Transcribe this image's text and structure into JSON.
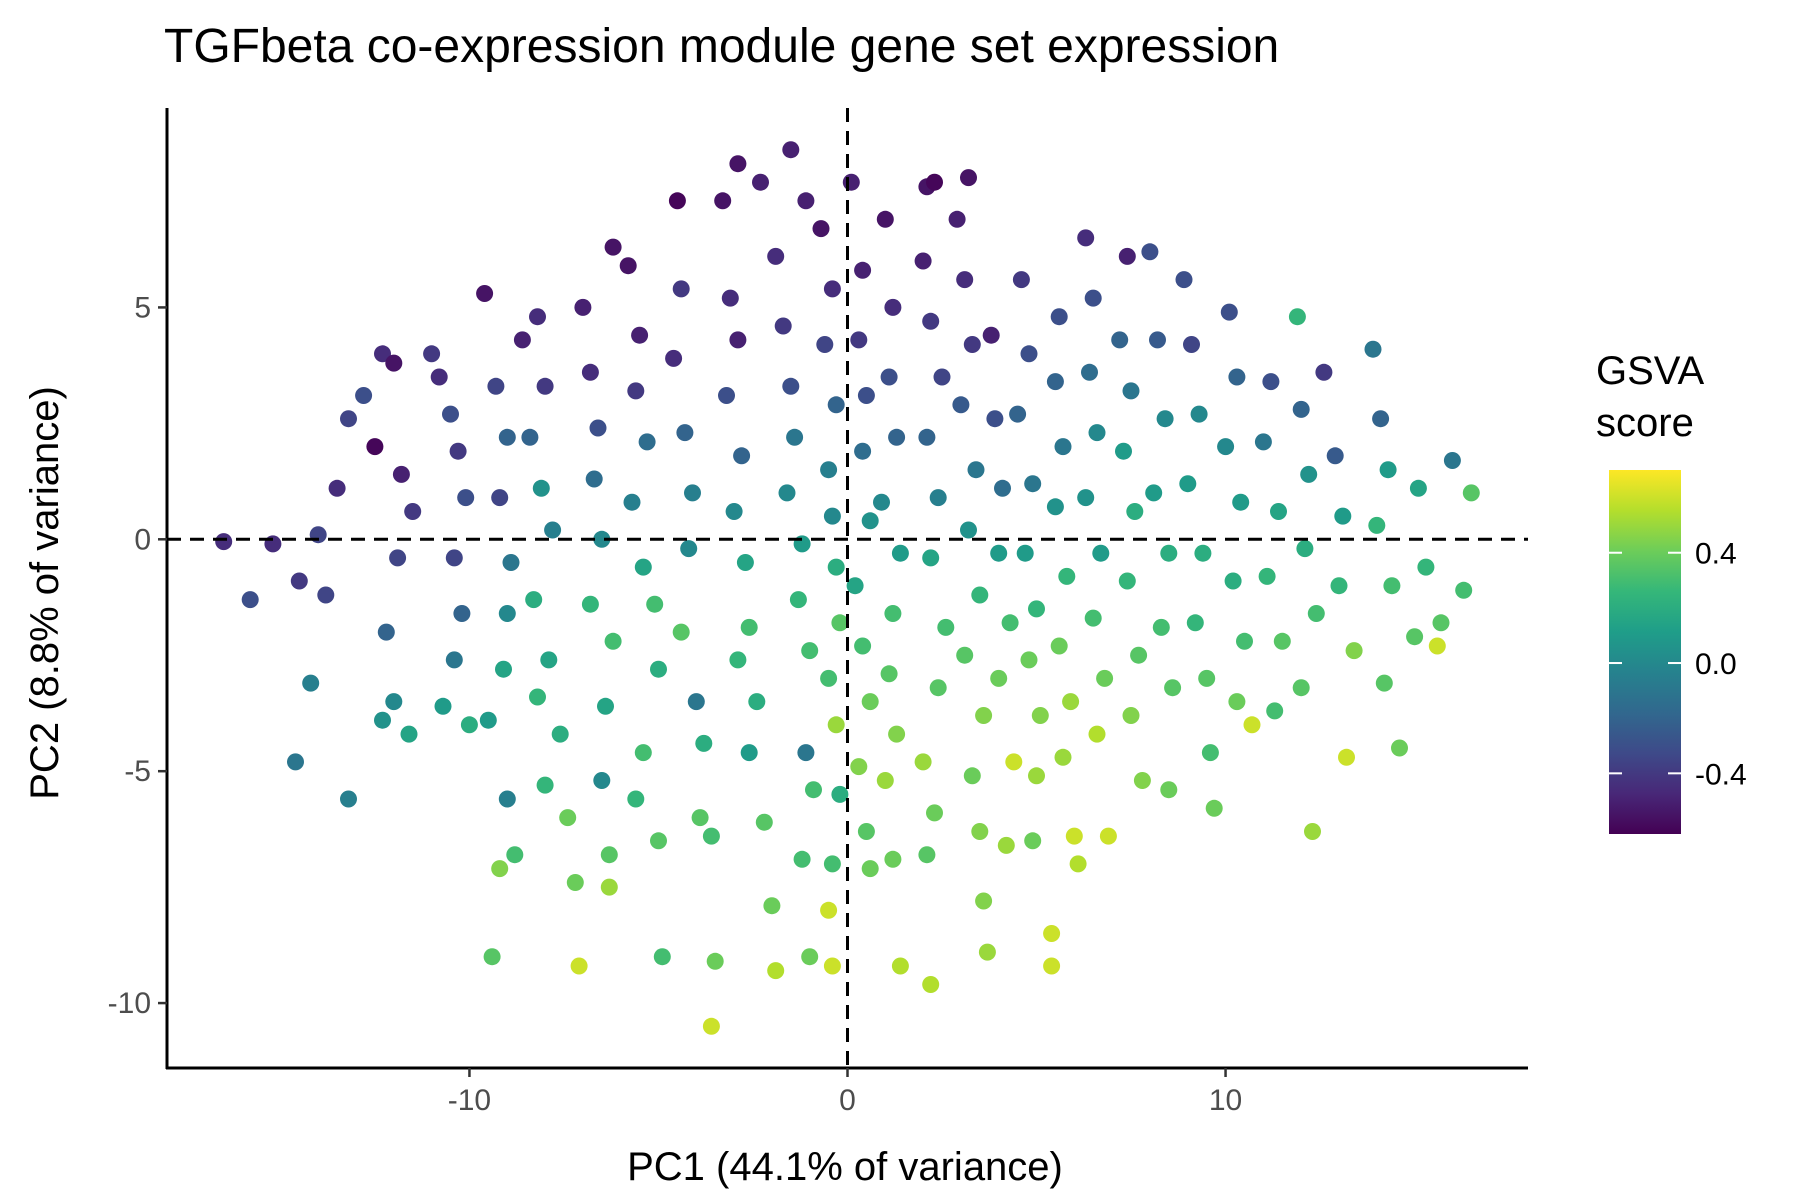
{
  "chart_data": {
    "type": "scatter",
    "title": "TGFbeta co-expression module gene set expression",
    "xlabel": "PC1 (44.1% of variance)",
    "ylabel": "PC2 (8.8% of variance)",
    "xlim": [
      -18,
      18
    ],
    "ylim": [
      -11.4,
      9.3
    ],
    "x_ticks": [
      -10,
      0,
      10
    ],
    "x_tick_labels": [
      "-10",
      "0",
      "10"
    ],
    "y_ticks": [
      -10,
      -5,
      0,
      5
    ],
    "y_tick_labels": [
      "-10",
      "-5",
      "0",
      "5"
    ],
    "reference_lines": {
      "x": 0,
      "y": 0,
      "style": "dashed"
    },
    "grid": false,
    "color_scale": {
      "name": "viridis",
      "title_lines": [
        "GSVA",
        "score"
      ],
      "domain": [
        -0.62,
        0.7
      ],
      "breaks": [
        -0.4,
        0.0,
        0.4
      ],
      "break_labels": [
        "-0.4",
        "0.0",
        "0.4"
      ],
      "stops": [
        "#440154",
        "#482878",
        "#3E4A89",
        "#31688E",
        "#26828E",
        "#1F9E89",
        "#35B779",
        "#6DCD59",
        "#B4DE2C",
        "#FDE725"
      ]
    },
    "legend_position": "right",
    "points": [
      [
        -16.5,
        -0.05,
        -0.45
      ],
      [
        -15.2,
        -0.1,
        -0.45
      ],
      [
        -15.8,
        -1.3,
        -0.3
      ],
      [
        -14.0,
        0.1,
        -0.35
      ],
      [
        -14.5,
        -0.9,
        -0.4
      ],
      [
        -13.8,
        -1.2,
        -0.35
      ],
      [
        -14.2,
        -3.1,
        -0.05
      ],
      [
        -14.6,
        -4.8,
        -0.1
      ],
      [
        -13.2,
        -5.6,
        -0.05
      ],
      [
        -13.5,
        1.1,
        -0.45
      ],
      [
        -13.2,
        2.6,
        -0.35
      ],
      [
        -12.8,
        3.1,
        -0.3
      ],
      [
        -12.3,
        4.0,
        -0.45
      ],
      [
        -12.5,
        2.0,
        -0.6
      ],
      [
        -12.0,
        3.8,
        -0.55
      ],
      [
        -11.8,
        1.4,
        -0.5
      ],
      [
        -11.5,
        0.6,
        -0.4
      ],
      [
        -11.9,
        -0.4,
        -0.35
      ],
      [
        -12.2,
        -2.0,
        -0.2
      ],
      [
        -12.0,
        -3.5,
        0.0
      ],
      [
        -12.3,
        -3.9,
        0.05
      ],
      [
        -11.6,
        -4.2,
        0.15
      ],
      [
        -11.0,
        4.0,
        -0.4
      ],
      [
        -10.8,
        3.5,
        -0.45
      ],
      [
        -10.5,
        2.7,
        -0.3
      ],
      [
        -10.3,
        1.9,
        -0.4
      ],
      [
        -10.1,
        0.9,
        -0.3
      ],
      [
        -10.4,
        -0.4,
        -0.35
      ],
      [
        -10.2,
        -1.6,
        -0.2
      ],
      [
        -10.4,
        -2.6,
        -0.1
      ],
      [
        -10.7,
        -3.6,
        0.1
      ],
      [
        -10.0,
        -4.0,
        0.2
      ],
      [
        -9.6,
        5.3,
        -0.55
      ],
      [
        -9.3,
        3.3,
        -0.35
      ],
      [
        -9.0,
        2.2,
        -0.2
      ],
      [
        -9.2,
        0.9,
        -0.35
      ],
      [
        -8.9,
        -0.5,
        -0.1
      ],
      [
        -9.0,
        -1.6,
        0.0
      ],
      [
        -9.1,
        -2.8,
        0.15
      ],
      [
        -9.5,
        -3.9,
        0.1
      ],
      [
        -9.0,
        -5.6,
        -0.05
      ],
      [
        -8.8,
        -6.8,
        0.3
      ],
      [
        -9.2,
        -7.1,
        0.45
      ],
      [
        -9.4,
        -9.0,
        0.35
      ],
      [
        -8.6,
        4.3,
        -0.5
      ],
      [
        -8.2,
        4.8,
        -0.45
      ],
      [
        -8.0,
        3.3,
        -0.4
      ],
      [
        -8.4,
        2.2,
        -0.2
      ],
      [
        -8.1,
        1.1,
        0.05
      ],
      [
        -7.8,
        0.2,
        -0.05
      ],
      [
        -8.3,
        -1.3,
        0.2
      ],
      [
        -7.9,
        -2.6,
        0.15
      ],
      [
        -8.2,
        -3.4,
        0.25
      ],
      [
        -7.6,
        -4.2,
        0.2
      ],
      [
        -8.0,
        -5.3,
        0.25
      ],
      [
        -7.4,
        -6.0,
        0.4
      ],
      [
        -7.2,
        -7.4,
        0.4
      ],
      [
        -7.1,
        -9.2,
        0.6
      ],
      [
        -7.0,
        5.0,
        -0.5
      ],
      [
        -6.8,
        3.6,
        -0.45
      ],
      [
        -6.6,
        2.4,
        -0.3
      ],
      [
        -6.7,
        1.3,
        -0.15
      ],
      [
        -6.5,
        0.0,
        0.0
      ],
      [
        -6.8,
        -1.4,
        0.25
      ],
      [
        -6.2,
        -2.2,
        0.3
      ],
      [
        -6.4,
        -3.6,
        0.15
      ],
      [
        -6.5,
        -5.2,
        0.0
      ],
      [
        -6.3,
        -6.8,
        0.35
      ],
      [
        -6.3,
        -7.5,
        0.5
      ],
      [
        -6.2,
        6.3,
        -0.55
      ],
      [
        -5.8,
        5.9,
        -0.55
      ],
      [
        -5.5,
        4.4,
        -0.5
      ],
      [
        -5.6,
        3.2,
        -0.4
      ],
      [
        -5.3,
        2.1,
        -0.15
      ],
      [
        -5.7,
        0.8,
        -0.05
      ],
      [
        -5.4,
        -0.6,
        0.15
      ],
      [
        -5.1,
        -1.4,
        0.3
      ],
      [
        -5.0,
        -2.8,
        0.2
      ],
      [
        -5.4,
        -4.6,
        0.3
      ],
      [
        -5.6,
        -5.6,
        0.25
      ],
      [
        -5.0,
        -6.5,
        0.35
      ],
      [
        -4.9,
        -9.0,
        0.3
      ],
      [
        -4.5,
        7.3,
        -0.6
      ],
      [
        -4.4,
        5.4,
        -0.4
      ],
      [
        -4.6,
        3.9,
        -0.45
      ],
      [
        -4.3,
        2.3,
        -0.2
      ],
      [
        -4.1,
        1.0,
        -0.05
      ],
      [
        -4.2,
        -0.2,
        0.0
      ],
      [
        -4.4,
        -2.0,
        0.35
      ],
      [
        -4.0,
        -3.5,
        -0.1
      ],
      [
        -3.8,
        -4.4,
        0.2
      ],
      [
        -3.9,
        -6.0,
        0.35
      ],
      [
        -3.6,
        -6.4,
        0.3
      ],
      [
        -3.5,
        -9.1,
        0.4
      ],
      [
        -3.6,
        -10.5,
        0.6
      ],
      [
        -3.3,
        7.3,
        -0.55
      ],
      [
        -3.1,
        5.2,
        -0.45
      ],
      [
        -2.9,
        4.3,
        -0.5
      ],
      [
        -3.2,
        3.1,
        -0.3
      ],
      [
        -2.8,
        1.8,
        -0.2
      ],
      [
        -3.0,
        0.6,
        0.0
      ],
      [
        -2.7,
        -0.5,
        0.15
      ],
      [
        -2.6,
        -1.9,
        0.3
      ],
      [
        -2.9,
        -2.6,
        0.25
      ],
      [
        -2.4,
        -3.5,
        0.2
      ],
      [
        -2.6,
        -4.6,
        0.1
      ],
      [
        -2.2,
        -6.1,
        0.35
      ],
      [
        -2.0,
        -7.9,
        0.4
      ],
      [
        -1.9,
        -9.3,
        0.55
      ],
      [
        -2.9,
        8.1,
        -0.55
      ],
      [
        -2.3,
        7.7,
        -0.5
      ],
      [
        -1.9,
        6.1,
        -0.45
      ],
      [
        -1.7,
        4.6,
        -0.4
      ],
      [
        -1.5,
        3.3,
        -0.3
      ],
      [
        -1.4,
        2.2,
        -0.1
      ],
      [
        -1.6,
        1.0,
        0.0
      ],
      [
        -1.2,
        -0.1,
        0.1
      ],
      [
        -1.3,
        -1.3,
        0.25
      ],
      [
        -1.0,
        -2.4,
        0.3
      ],
      [
        -1.1,
        -4.6,
        -0.1
      ],
      [
        -0.9,
        -5.4,
        0.3
      ],
      [
        -1.2,
        -6.9,
        0.3
      ],
      [
        -1.0,
        -9.0,
        0.4
      ],
      [
        -1.5,
        8.4,
        -0.5
      ],
      [
        -1.1,
        7.3,
        -0.5
      ],
      [
        -0.7,
        6.7,
        -0.55
      ],
      [
        -0.4,
        5.4,
        -0.45
      ],
      [
        -0.6,
        4.2,
        -0.35
      ],
      [
        -0.3,
        2.9,
        -0.2
      ],
      [
        -0.5,
        1.5,
        -0.05
      ],
      [
        -0.4,
        0.5,
        0.0
      ],
      [
        -0.3,
        -0.6,
        0.2
      ],
      [
        -0.2,
        -1.8,
        0.35
      ],
      [
        -0.5,
        -3.0,
        0.3
      ],
      [
        -0.3,
        -4.0,
        0.5
      ],
      [
        -0.2,
        -5.5,
        0.2
      ],
      [
        -0.4,
        -7.0,
        0.3
      ],
      [
        -0.5,
        -8.0,
        0.6
      ],
      [
        -0.4,
        -9.2,
        0.6
      ],
      [
        0.1,
        7.7,
        -0.5
      ],
      [
        0.4,
        5.8,
        -0.5
      ],
      [
        0.3,
        4.3,
        -0.4
      ],
      [
        0.5,
        3.1,
        -0.3
      ],
      [
        0.4,
        1.9,
        -0.15
      ],
      [
        0.6,
        0.4,
        0.05
      ],
      [
        0.2,
        -1.0,
        0.15
      ],
      [
        0.4,
        -2.3,
        0.3
      ],
      [
        0.6,
        -3.5,
        0.4
      ],
      [
        0.3,
        -4.9,
        0.45
      ],
      [
        0.5,
        -6.3,
        0.35
      ],
      [
        0.6,
        -7.1,
        0.4
      ],
      [
        1.0,
        6.9,
        -0.55
      ],
      [
        1.2,
        5.0,
        -0.45
      ],
      [
        1.1,
        3.5,
        -0.3
      ],
      [
        1.3,
        2.2,
        -0.2
      ],
      [
        0.9,
        0.8,
        0.0
      ],
      [
        1.4,
        -0.3,
        0.1
      ],
      [
        1.2,
        -1.6,
        0.3
      ],
      [
        1.1,
        -2.9,
        0.35
      ],
      [
        1.3,
        -4.2,
        0.45
      ],
      [
        1.0,
        -5.2,
        0.5
      ],
      [
        1.2,
        -6.9,
        0.4
      ],
      [
        1.4,
        -9.2,
        0.55
      ],
      [
        2.1,
        7.6,
        -0.55
      ],
      [
        2.3,
        7.7,
        -0.6
      ],
      [
        2.0,
        6.0,
        -0.5
      ],
      [
        2.2,
        4.7,
        -0.4
      ],
      [
        2.5,
        3.5,
        -0.35
      ],
      [
        2.1,
        2.2,
        -0.2
      ],
      [
        2.4,
        0.9,
        -0.05
      ],
      [
        2.2,
        -0.4,
        0.15
      ],
      [
        2.6,
        -1.9,
        0.3
      ],
      [
        2.4,
        -3.2,
        0.35
      ],
      [
        2.0,
        -4.8,
        0.5
      ],
      [
        2.3,
        -5.9,
        0.4
      ],
      [
        2.1,
        -6.8,
        0.35
      ],
      [
        2.2,
        -9.6,
        0.55
      ],
      [
        3.2,
        7.8,
        -0.55
      ],
      [
        2.9,
        6.9,
        -0.5
      ],
      [
        3.1,
        5.6,
        -0.45
      ],
      [
        3.3,
        4.2,
        -0.4
      ],
      [
        3.0,
        2.9,
        -0.25
      ],
      [
        3.4,
        1.5,
        -0.1
      ],
      [
        3.2,
        0.2,
        0.05
      ],
      [
        3.5,
        -1.2,
        0.25
      ],
      [
        3.1,
        -2.5,
        0.35
      ],
      [
        3.6,
        -3.8,
        0.45
      ],
      [
        3.3,
        -5.1,
        0.4
      ],
      [
        3.5,
        -6.3,
        0.45
      ],
      [
        3.6,
        -7.8,
        0.45
      ],
      [
        3.7,
        -8.9,
        0.5
      ],
      [
        3.8,
        4.4,
        -0.5
      ],
      [
        3.9,
        2.6,
        -0.3
      ],
      [
        4.1,
        1.1,
        -0.15
      ],
      [
        4.0,
        -0.3,
        0.1
      ],
      [
        4.3,
        -1.8,
        0.3
      ],
      [
        4.0,
        -3.0,
        0.4
      ],
      [
        4.4,
        -4.8,
        0.6
      ],
      [
        4.2,
        -6.6,
        0.5
      ],
      [
        4.6,
        5.6,
        -0.4
      ],
      [
        4.8,
        4.0,
        -0.3
      ],
      [
        4.5,
        2.7,
        -0.2
      ],
      [
        4.9,
        1.2,
        -0.1
      ],
      [
        4.7,
        -0.3,
        0.1
      ],
      [
        5.0,
        -1.5,
        0.25
      ],
      [
        4.8,
        -2.6,
        0.4
      ],
      [
        5.1,
        -3.8,
        0.45
      ],
      [
        5.0,
        -5.1,
        0.5
      ],
      [
        4.9,
        -6.5,
        0.4
      ],
      [
        5.4,
        -8.5,
        0.6
      ],
      [
        5.4,
        -9.2,
        0.6
      ],
      [
        5.6,
        4.8,
        -0.3
      ],
      [
        5.5,
        3.4,
        -0.2
      ],
      [
        5.7,
        2.0,
        -0.1
      ],
      [
        5.5,
        0.7,
        0.05
      ],
      [
        5.8,
        -0.8,
        0.25
      ],
      [
        5.6,
        -2.3,
        0.4
      ],
      [
        5.9,
        -3.5,
        0.5
      ],
      [
        5.7,
        -4.7,
        0.5
      ],
      [
        6.0,
        -6.4,
        0.6
      ],
      [
        6.1,
        -7.0,
        0.55
      ],
      [
        6.3,
        6.5,
        -0.45
      ],
      [
        6.5,
        5.2,
        -0.3
      ],
      [
        6.4,
        3.6,
        -0.15
      ],
      [
        6.6,
        2.3,
        0.0
      ],
      [
        6.3,
        0.9,
        0.05
      ],
      [
        6.7,
        -0.3,
        0.1
      ],
      [
        6.5,
        -1.7,
        0.3
      ],
      [
        6.8,
        -3.0,
        0.4
      ],
      [
        6.6,
        -4.2,
        0.55
      ],
      [
        6.9,
        -6.4,
        0.6
      ],
      [
        7.4,
        6.1,
        -0.5
      ],
      [
        7.2,
        4.3,
        -0.2
      ],
      [
        7.5,
        3.2,
        -0.1
      ],
      [
        7.3,
        1.9,
        0.1
      ],
      [
        7.6,
        0.6,
        0.2
      ],
      [
        7.4,
        -0.9,
        0.25
      ],
      [
        7.7,
        -2.5,
        0.35
      ],
      [
        7.5,
        -3.8,
        0.45
      ],
      [
        7.8,
        -5.2,
        0.45
      ],
      [
        8.0,
        6.2,
        -0.3
      ],
      [
        8.2,
        4.3,
        -0.25
      ],
      [
        8.4,
        2.6,
        0.0
      ],
      [
        8.1,
        1.0,
        0.1
      ],
      [
        8.5,
        -0.3,
        0.2
      ],
      [
        8.3,
        -1.9,
        0.3
      ],
      [
        8.6,
        -3.2,
        0.35
      ],
      [
        8.5,
        -5.4,
        0.4
      ],
      [
        8.9,
        5.6,
        -0.3
      ],
      [
        9.1,
        4.2,
        -0.35
      ],
      [
        9.3,
        2.7,
        0.0
      ],
      [
        9.0,
        1.2,
        0.1
      ],
      [
        9.4,
        -0.3,
        0.2
      ],
      [
        9.2,
        -1.8,
        0.25
      ],
      [
        9.5,
        -3.0,
        0.35
      ],
      [
        9.6,
        -4.6,
        0.3
      ],
      [
        9.7,
        -5.8,
        0.4
      ],
      [
        10.1,
        4.9,
        -0.3
      ],
      [
        10.3,
        3.5,
        -0.2
      ],
      [
        10.0,
        2.0,
        0.0
      ],
      [
        10.4,
        0.8,
        0.1
      ],
      [
        10.2,
        -0.9,
        0.2
      ],
      [
        10.5,
        -2.2,
        0.3
      ],
      [
        10.3,
        -3.5,
        0.4
      ],
      [
        10.7,
        -4.0,
        0.6
      ],
      [
        11.2,
        3.4,
        -0.3
      ],
      [
        11.0,
        2.1,
        -0.1
      ],
      [
        11.4,
        0.6,
        0.15
      ],
      [
        11.1,
        -0.8,
        0.25
      ],
      [
        11.5,
        -2.2,
        0.35
      ],
      [
        11.3,
        -3.7,
        0.3
      ],
      [
        11.9,
        4.8,
        0.25
      ],
      [
        12.0,
        2.8,
        -0.2
      ],
      [
        12.2,
        1.4,
        0.05
      ],
      [
        12.1,
        -0.2,
        0.2
      ],
      [
        12.4,
        -1.6,
        0.3
      ],
      [
        12.0,
        -3.2,
        0.35
      ],
      [
        12.3,
        -6.3,
        0.5
      ],
      [
        12.6,
        3.6,
        -0.4
      ],
      [
        12.9,
        1.8,
        -0.25
      ],
      [
        13.1,
        0.5,
        0.1
      ],
      [
        13.0,
        -1.0,
        0.25
      ],
      [
        13.4,
        -2.4,
        0.45
      ],
      [
        13.2,
        -4.7,
        0.6
      ],
      [
        13.9,
        4.1,
        -0.1
      ],
      [
        14.1,
        2.6,
        -0.2
      ],
      [
        14.3,
        1.5,
        0.1
      ],
      [
        14.0,
        0.3,
        0.25
      ],
      [
        14.4,
        -1.0,
        0.3
      ],
      [
        14.2,
        -3.1,
        0.35
      ],
      [
        14.6,
        -4.5,
        0.4
      ],
      [
        15.1,
        1.1,
        0.15
      ],
      [
        15.3,
        -0.6,
        0.25
      ],
      [
        15.0,
        -2.1,
        0.35
      ],
      [
        15.6,
        -2.3,
        0.6
      ],
      [
        16.0,
        1.7,
        -0.1
      ],
      [
        16.5,
        1.0,
        0.35
      ],
      [
        16.3,
        -1.1,
        0.3
      ],
      [
        15.7,
        -1.8,
        0.35
      ]
    ]
  }
}
